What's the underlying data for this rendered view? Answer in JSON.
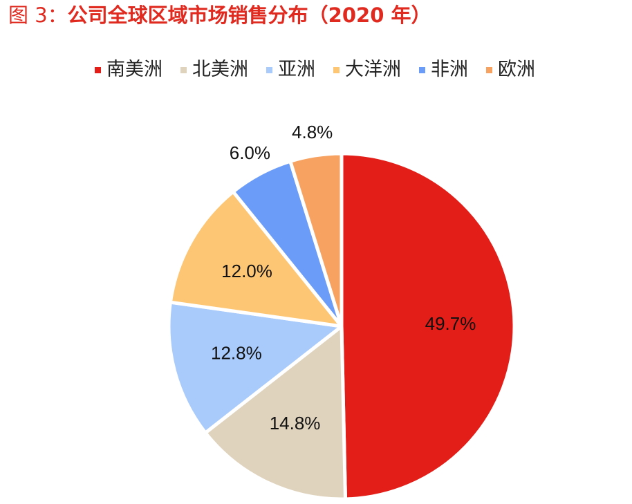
{
  "title": {
    "prefix": "图 3：",
    "text": "公司全球区域市场销售分布（2020 年）",
    "color": "#e02a20"
  },
  "chart_data": {
    "type": "pie",
    "title": "图 3：公司全球区域市场销售分布（2020 年）",
    "legend_position": "top",
    "categories": [
      "南美洲",
      "北美洲",
      "亚洲",
      "大洋洲",
      "非洲",
      "欧洲"
    ],
    "values": [
      49.7,
      14.8,
      12.8,
      12.0,
      6.0,
      4.8
    ],
    "labels": [
      "49.7%",
      "14.8%",
      "12.8%",
      "12.0%",
      "6.0%",
      "4.8%"
    ],
    "colors": [
      "#e31e18",
      "#dfd3bd",
      "#a9cbfb",
      "#fdc675",
      "#6b9cf8",
      "#f7a260"
    ],
    "label_placement": [
      "inside",
      "inside",
      "inside",
      "inside",
      "outside",
      "outside"
    ],
    "start_angle_deg": 0,
    "direction": "clockwise"
  }
}
